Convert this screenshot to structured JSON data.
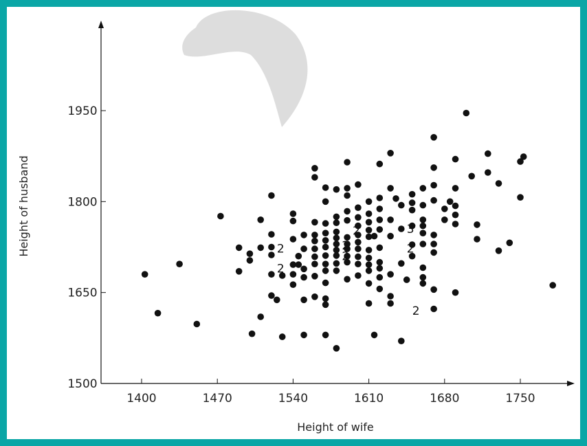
{
  "chart_data": {
    "type": "scatter",
    "title": "",
    "xlabel": "Height of wife",
    "ylabel": "Height of husband",
    "xlim": [
      1360,
      1790
    ],
    "ylim": [
      1500,
      2080
    ],
    "xticks": [
      1400,
      1470,
      1540,
      1610,
      1680,
      1750
    ],
    "yticks": [
      1500,
      1650,
      1800,
      1950
    ],
    "xtick_labels": [
      "1400",
      "1470",
      "1540",
      "1610",
      "1680",
      "1750"
    ],
    "ytick_labels": [
      "1500",
      "1650",
      "1800",
      "1950"
    ],
    "grid": false,
    "points": [
      [
        1403,
        1680
      ],
      [
        1415,
        1616
      ],
      [
        1435,
        1697
      ],
      [
        1451,
        1598
      ],
      [
        1473,
        1776
      ],
      [
        1490,
        1724
      ],
      [
        1490,
        1685
      ],
      [
        1500,
        1714
      ],
      [
        1500,
        1703
      ],
      [
        1502,
        1582
      ],
      [
        1510,
        1610
      ],
      [
        1510,
        1770
      ],
      [
        1510,
        1724
      ],
      [
        1520,
        1810
      ],
      [
        1520,
        1746
      ],
      [
        1520,
        1725
      ],
      [
        1520,
        1712
      ],
      [
        1520,
        1680
      ],
      [
        1520,
        1645
      ],
      [
        1525,
        1638
      ],
      [
        1530,
        1678
      ],
      [
        1530,
        1577
      ],
      [
        1540,
        1780
      ],
      [
        1540,
        1768
      ],
      [
        1540,
        1738
      ],
      [
        1540,
        1696
      ],
      [
        1540,
        1680
      ],
      [
        1540,
        1663
      ],
      [
        1545,
        1710
      ],
      [
        1545,
        1696
      ],
      [
        1550,
        1745
      ],
      [
        1550,
        1722
      ],
      [
        1550,
        1689
      ],
      [
        1550,
        1675
      ],
      [
        1550,
        1638
      ],
      [
        1550,
        1580
      ],
      [
        1560,
        1855
      ],
      [
        1560,
        1840
      ],
      [
        1560,
        1766
      ],
      [
        1560,
        1745
      ],
      [
        1560,
        1735
      ],
      [
        1560,
        1722
      ],
      [
        1560,
        1709
      ],
      [
        1560,
        1697
      ],
      [
        1560,
        1677
      ],
      [
        1560,
        1643
      ],
      [
        1570,
        1823
      ],
      [
        1570,
        1800
      ],
      [
        1570,
        1764
      ],
      [
        1570,
        1748
      ],
      [
        1570,
        1736
      ],
      [
        1570,
        1725
      ],
      [
        1570,
        1711
      ],
      [
        1570,
        1697
      ],
      [
        1570,
        1686
      ],
      [
        1570,
        1666
      ],
      [
        1570,
        1640
      ],
      [
        1570,
        1630
      ],
      [
        1570,
        1580
      ],
      [
        1580,
        1820
      ],
      [
        1580,
        1775
      ],
      [
        1580,
        1765
      ],
      [
        1580,
        1750
      ],
      [
        1580,
        1740
      ],
      [
        1580,
        1730
      ],
      [
        1580,
        1720
      ],
      [
        1580,
        1711
      ],
      [
        1580,
        1698
      ],
      [
        1580,
        1686
      ],
      [
        1580,
        1558
      ],
      [
        1590,
        1865
      ],
      [
        1590,
        1822
      ],
      [
        1590,
        1810
      ],
      [
        1590,
        1784
      ],
      [
        1590,
        1769
      ],
      [
        1590,
        1741
      ],
      [
        1590,
        1730
      ],
      [
        1590,
        1722
      ],
      [
        1590,
        1710
      ],
      [
        1590,
        1700
      ],
      [
        1590,
        1672
      ],
      [
        1600,
        1828
      ],
      [
        1600,
        1790
      ],
      [
        1600,
        1774
      ],
      [
        1600,
        1760
      ],
      [
        1600,
        1745
      ],
      [
        1600,
        1733
      ],
      [
        1600,
        1722
      ],
      [
        1600,
        1709
      ],
      [
        1600,
        1697
      ],
      [
        1600,
        1678
      ],
      [
        1610,
        1800
      ],
      [
        1610,
        1780
      ],
      [
        1610,
        1766
      ],
      [
        1610,
        1753
      ],
      [
        1610,
        1742
      ],
      [
        1610,
        1720
      ],
      [
        1610,
        1707
      ],
      [
        1610,
        1696
      ],
      [
        1610,
        1686
      ],
      [
        1610,
        1665
      ],
      [
        1610,
        1632
      ],
      [
        1615,
        1743
      ],
      [
        1615,
        1580
      ],
      [
        1620,
        1862
      ],
      [
        1620,
        1806
      ],
      [
        1620,
        1788
      ],
      [
        1620,
        1770
      ],
      [
        1620,
        1754
      ],
      [
        1620,
        1724
      ],
      [
        1620,
        1700
      ],
      [
        1620,
        1690
      ],
      [
        1620,
        1675
      ],
      [
        1620,
        1656
      ],
      [
        1630,
        1880
      ],
      [
        1630,
        1822
      ],
      [
        1630,
        1770
      ],
      [
        1630,
        1743
      ],
      [
        1630,
        1680
      ],
      [
        1630,
        1644
      ],
      [
        1630,
        1632
      ],
      [
        1635,
        1805
      ],
      [
        1640,
        1794
      ],
      [
        1640,
        1755
      ],
      [
        1640,
        1698
      ],
      [
        1640,
        1570
      ],
      [
        1645,
        1671
      ],
      [
        1650,
        1812
      ],
      [
        1650,
        1798
      ],
      [
        1650,
        1786
      ],
      [
        1650,
        1760
      ],
      [
        1650,
        1729
      ],
      [
        1650,
        1710
      ],
      [
        1660,
        1822
      ],
      [
        1660,
        1794
      ],
      [
        1660,
        1770
      ],
      [
        1660,
        1760
      ],
      [
        1660,
        1748
      ],
      [
        1660,
        1730
      ],
      [
        1660,
        1691
      ],
      [
        1660,
        1675
      ],
      [
        1660,
        1665
      ],
      [
        1670,
        1906
      ],
      [
        1670,
        1856
      ],
      [
        1670,
        1827
      ],
      [
        1670,
        1802
      ],
      [
        1670,
        1745
      ],
      [
        1670,
        1730
      ],
      [
        1670,
        1716
      ],
      [
        1670,
        1655
      ],
      [
        1670,
        1623
      ],
      [
        1680,
        1788
      ],
      [
        1680,
        1770
      ],
      [
        1685,
        1800
      ],
      [
        1690,
        1870
      ],
      [
        1690,
        1822
      ],
      [
        1690,
        1793
      ],
      [
        1690,
        1778
      ],
      [
        1690,
        1763
      ],
      [
        1690,
        1650
      ],
      [
        1700,
        1946
      ],
      [
        1705,
        1842
      ],
      [
        1710,
        1738
      ],
      [
        1710,
        1762
      ],
      [
        1720,
        1879
      ],
      [
        1720,
        1848
      ],
      [
        1730,
        1830
      ],
      [
        1730,
        1719
      ],
      [
        1740,
        1732
      ],
      [
        1750,
        1866
      ],
      [
        1750,
        1807
      ],
      [
        1753,
        1874
      ],
      [
        1780,
        1662
      ]
    ],
    "count_labels": [
      {
        "x": 1580,
        "y": 1728,
        "text": "2"
      },
      {
        "x": 1590,
        "y": 1752,
        "text": "2"
      },
      {
        "x": 1580,
        "y": 1710,
        "text": "2"
      },
      {
        "x": 1520,
        "y": 1690,
        "text": "2"
      },
      {
        "x": 1520,
        "y": 1723,
        "text": "2"
      },
      {
        "x": 1640,
        "y": 1755,
        "text": "3"
      },
      {
        "x": 1640,
        "y": 1723,
        "text": "2"
      },
      {
        "x": 1645,
        "y": 1620,
        "text": "2"
      }
    ]
  },
  "colors": {
    "frame_border": "#0aa6a6",
    "background": "#ffffff",
    "points": "#111111",
    "watermark": "#dddddd"
  }
}
